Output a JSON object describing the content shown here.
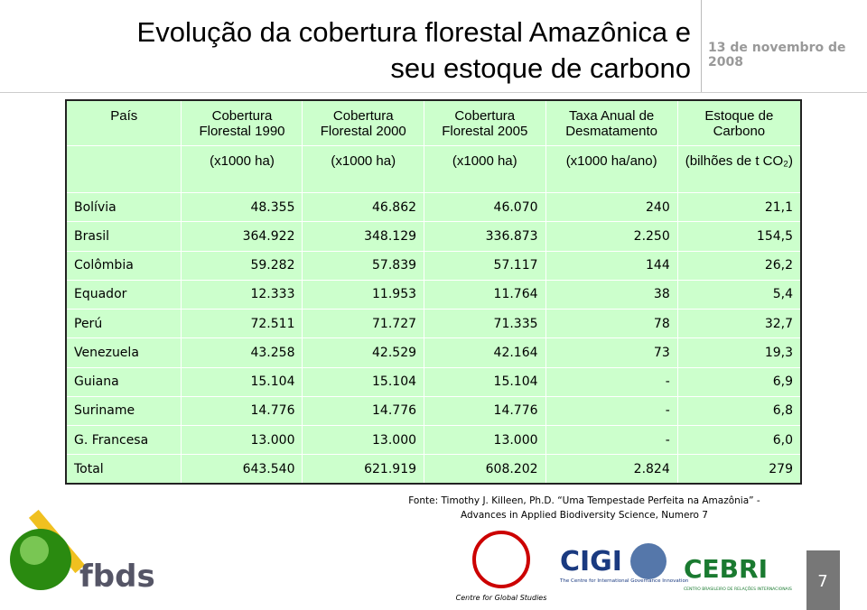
{
  "header": {
    "title_line1": "Evolução da cobertura florestal Amazônica e",
    "title_line2": "seu estoque de carbono",
    "date": "13 de novembro de 2008"
  },
  "table": {
    "columns": [
      {
        "title": [
          "País"
        ],
        "unit": ""
      },
      {
        "title": [
          "Cobertura",
          "Florestal 1990"
        ],
        "unit": "(x1000 ha)"
      },
      {
        "title": [
          "Cobertura",
          "Florestal 2000"
        ],
        "unit": "(x1000 ha)"
      },
      {
        "title": [
          "Cobertura",
          "Florestal 2005"
        ],
        "unit": "(x1000 ha)"
      },
      {
        "title": [
          "Taxa Anual de",
          "Desmatamento"
        ],
        "unit": "(x1000 ha/ano)"
      },
      {
        "title": [
          "Estoque de",
          "Carbono"
        ],
        "unit": "(bilhões de t CO₂)"
      }
    ],
    "rows": [
      [
        "Bolívia",
        "48.355",
        "46.862",
        "46.070",
        "240",
        "21,1"
      ],
      [
        "Brasil",
        "364.922",
        "348.129",
        "336.873",
        "2.250",
        "154,5"
      ],
      [
        "Colômbia",
        "59.282",
        "57.839",
        "57.117",
        "144",
        "26,2"
      ],
      [
        "Equador",
        "12.333",
        "11.953",
        "11.764",
        "38",
        "5,4"
      ],
      [
        "Perú",
        "72.511",
        "71.727",
        "71.335",
        "78",
        "32,7"
      ],
      [
        "Venezuela",
        "43.258",
        "42.529",
        "42.164",
        "73",
        "19,3"
      ],
      [
        "Guiana",
        "15.104",
        "15.104",
        "15.104",
        "-",
        "6,9"
      ],
      [
        "Suriname",
        "14.776",
        "14.776",
        "14.776",
        "-",
        "6,8"
      ],
      [
        "G. Francesa",
        "13.000",
        "13.000",
        "13.000",
        "-",
        "6,0"
      ],
      [
        "Total",
        "643.540",
        "621.919",
        "608.202",
        "2.824",
        "279"
      ]
    ]
  },
  "source": {
    "line1": "Fonte: Timothy J. Killeen, Ph.D. “Uma Tempestade Perfeita na Amazônia” -",
    "line2": "Advances in Applied Biodiversity Science, Numero 7"
  },
  "logos": {
    "fbds": "fbds",
    "cgs": "Centre for Global Studies",
    "cigi": "CIGI",
    "cigi_sub": "The Centre for International Governance Innovation",
    "cebri": "CEBRI",
    "cebri_sub": "CENTRO BRASILEIRO DE RELAÇÕES INTERNACIONAIS"
  },
  "footer": {
    "page": "7"
  }
}
